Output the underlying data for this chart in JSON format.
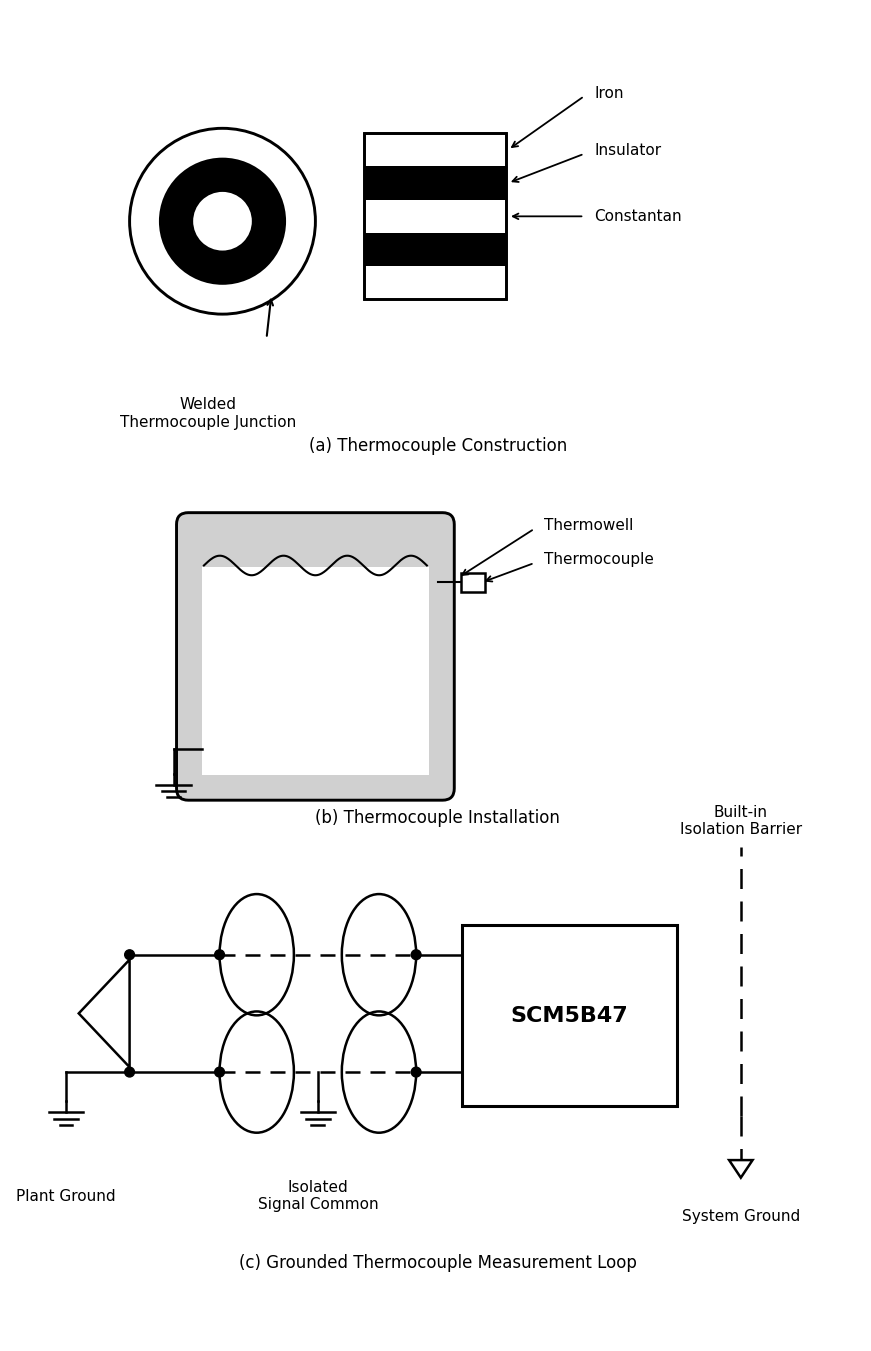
{
  "bg_color": "#ffffff",
  "title_a": "(a) Thermocouple Construction",
  "title_b": "(b) Thermocouple Installation",
  "title_c": "(c) Grounded Thermocouple Measurement Loop",
  "label_iron": "Iron",
  "label_insulator": "Insulator",
  "label_constantan": "Constantan",
  "label_welded": "Welded\nThermocouple Junction",
  "label_thermowell": "Thermowell",
  "label_thermocouple": "Thermocouple",
  "label_built_in": "Built-in\nIsolation Barrier",
  "label_scm": "SCM5B47",
  "label_plant_ground": "Plant Ground",
  "label_isolated": "Isolated\nSignal Common",
  "label_system_ground": "System Ground"
}
